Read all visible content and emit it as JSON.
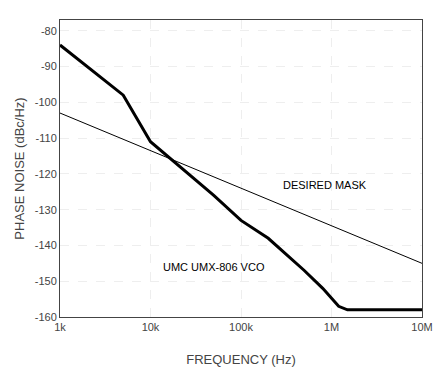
{
  "chart_data": {
    "type": "line",
    "xlabel": "FREQUENCY (Hz)",
    "ylabel": "PHASE NOISE (dBc/Hz)",
    "log": "x",
    "grid": true,
    "xlim": [
      1000,
      10000000
    ],
    "ylim": [
      -160,
      -77
    ],
    "xticks": [
      {
        "value": 1000,
        "label": "1k"
      },
      {
        "value": 10000,
        "label": "10k"
      },
      {
        "value": 100000,
        "label": "100k"
      },
      {
        "value": 1000000,
        "label": "1M"
      },
      {
        "value": 10000000,
        "label": "10M"
      }
    ],
    "yticks": [
      -160,
      -150,
      -140,
      -130,
      -120,
      -110,
      -100,
      -90,
      -80
    ],
    "series": [
      {
        "color": "#000000",
        "x": [
          1000,
          5000,
          10000,
          50000,
          100000,
          200000,
          500000,
          800000,
          1200000,
          1500000,
          2000000,
          10000000
        ],
        "values": [
          -84,
          -98,
          -111,
          -126,
          -133,
          -138,
          -147,
          -152,
          -157,
          -158,
          -158,
          -158
        ]
      },
      {
        "color": "#000000",
        "x": [
          1000,
          10000000
        ],
        "values": [
          -103,
          -145
        ]
      }
    ],
    "annotations": [
      {
        "text": "DESIRED MASK",
        "x": 280000,
        "y": -123
      },
      {
        "text": "UMC UMX-806 VCO",
        "x": 13000,
        "y": -146
      }
    ]
  }
}
